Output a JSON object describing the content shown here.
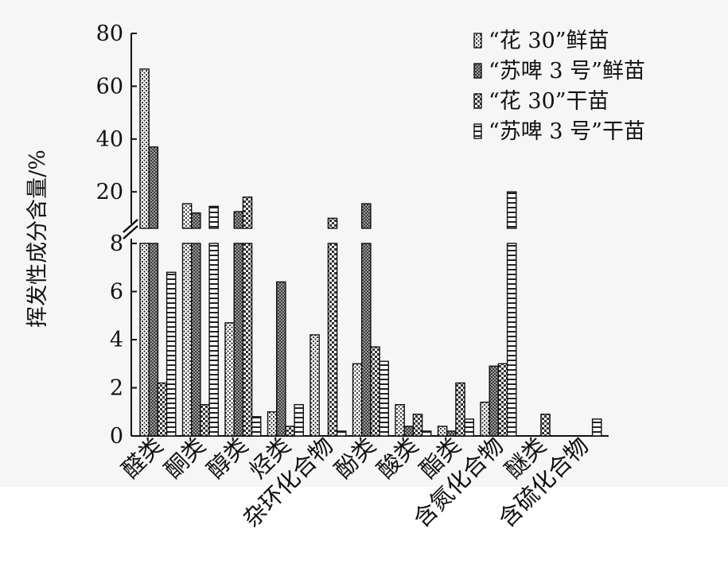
{
  "chart_data": {
    "type": "bar",
    "ylabel": "挥发性成分含量/%",
    "categories": [
      "醛类",
      "酮类",
      "醇类",
      "烃类",
      "杂环化合物",
      "酚类",
      "酸类",
      "酯类",
      "含氮化合物",
      "醚类",
      "含硫化合物"
    ],
    "series": [
      {
        "name": "“花 30”鲜苗",
        "pattern": "dots",
        "values": [
          66.5,
          15.5,
          4.7,
          1.0,
          4.2,
          3.0,
          1.3,
          0.4,
          1.4,
          0,
          0
        ]
      },
      {
        "name": "“苏啤 3 号”鲜苗",
        "pattern": "cross",
        "values": [
          37.0,
          12.0,
          12.5,
          6.4,
          0,
          15.5,
          0.4,
          0.2,
          2.9,
          0,
          0
        ]
      },
      {
        "name": "“花 30”干苗",
        "pattern": "check",
        "values": [
          2.2,
          1.3,
          18.0,
          0.4,
          10.0,
          3.7,
          0.9,
          2.2,
          3.0,
          0.9,
          0
        ]
      },
      {
        "name": "“苏啤 3 号”干苗",
        "pattern": "hlines",
        "values": [
          6.8,
          14.5,
          0.8,
          1.3,
          0.2,
          3.1,
          0.2,
          0.7,
          20.0,
          0,
          0.7
        ]
      }
    ],
    "axis_broken": true,
    "lower_segment": {
      "range": [
        0,
        8
      ],
      "ticks": [
        "0",
        "2",
        "4",
        "6",
        "8"
      ]
    },
    "upper_segment": {
      "range": [
        8,
        80
      ],
      "ticks": [
        "20",
        "40",
        "60",
        "80"
      ]
    },
    "legend_position": "top-right",
    "grid": false
  }
}
